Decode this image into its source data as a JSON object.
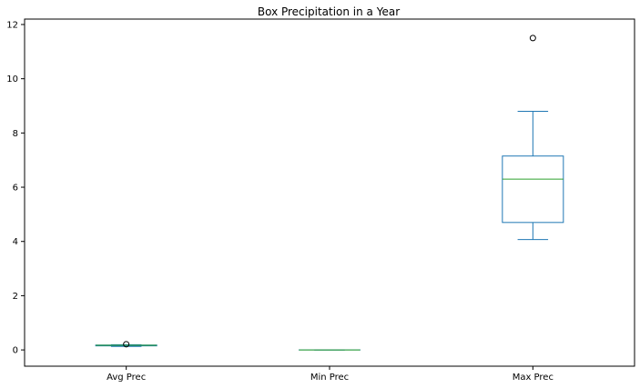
{
  "chart_data": {
    "type": "box",
    "title": "Box Precipitation in a Year",
    "xlabel": "",
    "ylabel": "",
    "categories": [
      "Avg Prec",
      "Min Prec",
      "Max Prec"
    ],
    "boxes": [
      {
        "name": "Avg Prec",
        "whisker_low": 0.13,
        "q1": 0.15,
        "median": 0.17,
        "q3": 0.18,
        "whisker_high": 0.19,
        "outliers": [
          0.21
        ]
      },
      {
        "name": "Min Prec",
        "whisker_low": 0.0,
        "q1": 0.0,
        "median": 0.0,
        "q3": 0.0,
        "whisker_high": 0.0,
        "outliers": []
      },
      {
        "name": "Max Prec",
        "whisker_low": 4.07,
        "q1": 4.7,
        "median": 6.3,
        "q3": 7.15,
        "whisker_high": 8.8,
        "outliers": [
          11.5
        ]
      }
    ],
    "yticks": [
      0,
      2,
      4,
      6,
      8,
      10,
      12
    ],
    "ylim": [
      -0.6,
      12.2
    ],
    "grid": false,
    "legend": "none",
    "colors": {
      "box": "#1f77b4",
      "median": "#2ca02c",
      "axis": "#000000"
    }
  }
}
